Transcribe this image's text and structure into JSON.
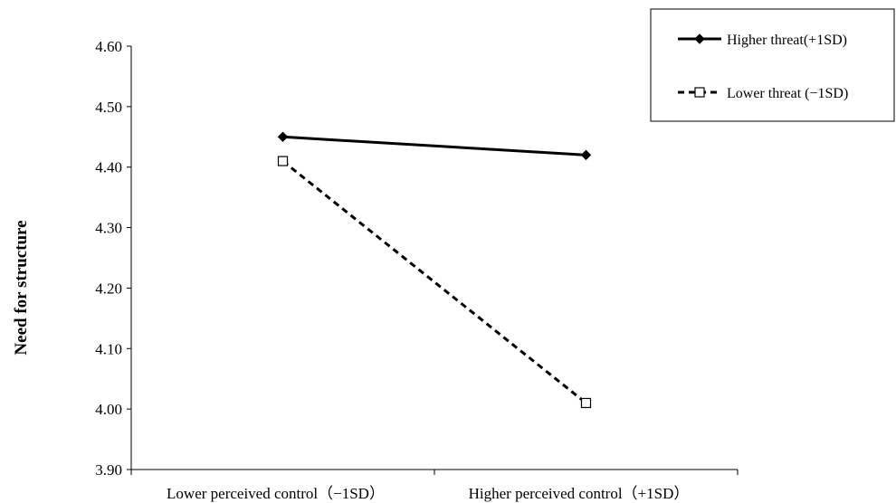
{
  "chart_data": {
    "type": "line",
    "title": "",
    "xlabel": "",
    "ylabel": "Need for structure",
    "categories": [
      "Lower perceived control（−1SD）",
      "Higher perceived control（+1SD）"
    ],
    "ylim": [
      3.9,
      4.6
    ],
    "yticks": [
      "3.90",
      "4.00",
      "4.10",
      "4.20",
      "4.30",
      "4.40",
      "4.50",
      "4.60"
    ],
    "ytick_values": [
      3.9,
      4.0,
      4.1,
      4.2,
      4.3,
      4.4,
      4.5,
      4.6
    ],
    "grid": false,
    "legend_position": "top-right",
    "series": [
      {
        "name": "Higher threat(+1SD)",
        "values": [
          4.45,
          4.42
        ],
        "line": "solid",
        "marker": "filled-diamond",
        "color": "#000000"
      },
      {
        "name": "Lower threat (−1SD)",
        "values": [
          4.41,
          4.01
        ],
        "line": "dashed",
        "marker": "open-square",
        "color": "#000000"
      }
    ]
  }
}
